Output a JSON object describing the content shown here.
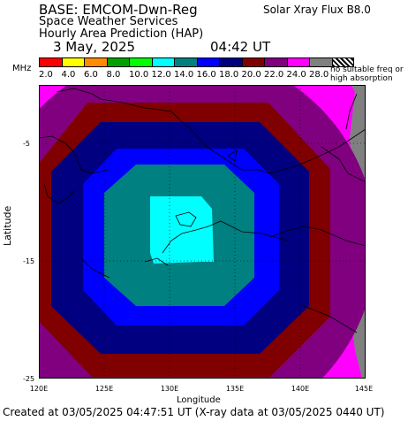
{
  "header": {
    "base": "BASE: EMCOM-Dwn-Reg",
    "service": "Space Weather Services",
    "product": "Hourly Area Prediction (HAP)",
    "date": "3 May, 2025",
    "time": "04:42 UT",
    "xray_flux": "Solar Xray Flux B8.0"
  },
  "legend": {
    "unit": "MHz",
    "items": [
      {
        "label": "2.0",
        "color": "#ff0000"
      },
      {
        "label": "4.0",
        "color": "#ffff00"
      },
      {
        "label": "6.0",
        "color": "#ff8c00"
      },
      {
        "label": "8.0",
        "color": "#00a000"
      },
      {
        "label": "10.0",
        "color": "#00ff00"
      },
      {
        "label": "12.0",
        "color": "#00ffff"
      },
      {
        "label": "14.0",
        "color": "#008080"
      },
      {
        "label": "16.0",
        "color": "#0000ff"
      },
      {
        "label": "18.0",
        "color": "#000080"
      },
      {
        "label": "20.0",
        "color": "#800000"
      },
      {
        "label": "22.0",
        "color": "#800080"
      },
      {
        "label": "24.0",
        "color": "#ff00ff"
      },
      {
        "label": "28.0",
        "color": "#808080"
      }
    ],
    "no_propagation": "no suitable freq or\nhigh absorption"
  },
  "axes": {
    "y_label": "Latitude",
    "y_ticks": [
      "-5",
      "-15",
      "-25"
    ],
    "x_label": "Longitude",
    "x_ticks": [
      "120E",
      "125E",
      "130E",
      "135E",
      "140E",
      "145E"
    ]
  },
  "footer": {
    "created": "Created at 03/05/2025 04:47:51 UT (X-ray data at 03/05/2025 0440 UT)"
  }
}
